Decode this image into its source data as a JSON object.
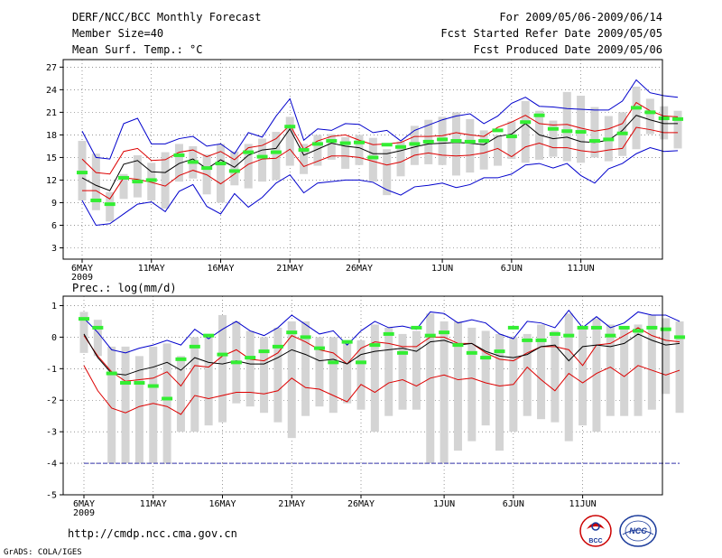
{
  "header": {
    "left_line1": "DERF/NCC/BCC Monthly Forecast",
    "left_line2": "Member Size=40",
    "left_line3": "Mean Surf. Temp.: °C",
    "right_line1": "For 2009/05/06-2009/06/14",
    "right_line2": "Fcst Started Refer Date 2009/05/05",
    "right_line3": "Fcst Produced Date 2009/05/06"
  },
  "footer": {
    "url": "http://cmdp.ncc.cma.gov.cn",
    "grads": "GrADS: COLA/IGES",
    "logo_bcc": "BCC",
    "logo_ncc": "NCC"
  },
  "colors": {
    "envelope": "#0000cc",
    "spread": "#dd0000",
    "mean": "#000000",
    "box": "#d4d4d4",
    "median": "#33ee33",
    "grid": "#555555",
    "baseline": "#3333aa"
  },
  "chart_data": [
    {
      "type": "line",
      "title": "Mean Surf. Temp.: °C",
      "x_tick_labels": [
        "6MAY",
        "11MAY",
        "16MAY",
        "21MAY",
        "26MAY",
        "1JUN",
        "6JUN",
        "11JUN"
      ],
      "x_tick_days": [
        0,
        5,
        10,
        15,
        20,
        26,
        31,
        36
      ],
      "first_label_year": "2009",
      "ylim": [
        1.5,
        28
      ],
      "yticks": [
        3,
        6,
        9,
        12,
        15,
        18,
        21,
        24,
        27
      ],
      "grid": "dotted",
      "series": [
        {
          "name": "max",
          "color": "blue",
          "values": [
            18.5,
            15,
            14.8,
            19.5,
            20.2,
            16.8,
            16.8,
            17.5,
            17.8,
            16.5,
            16.8,
            15.5,
            18.3,
            17.7,
            20.5,
            22.8,
            17.3,
            18.8,
            18.6,
            19.5,
            19.4,
            18.3,
            18.6,
            17.2,
            18.6,
            19.3,
            20,
            20.5,
            20.8,
            19.5,
            20.5,
            22.2,
            23,
            21.8,
            21.7,
            21.5,
            21.4,
            21.3,
            21.3,
            22.5,
            25.3,
            23.6,
            23.2,
            23
          ]
        },
        {
          "name": "p90",
          "color": "red",
          "values": [
            14.8,
            13,
            12.8,
            15.8,
            16.2,
            14.6,
            14.7,
            15.7,
            16,
            15.1,
            15.8,
            14.7,
            16.3,
            16.6,
            17.5,
            19.3,
            16.1,
            17.2,
            17.8,
            18,
            17.3,
            16.7,
            16.8,
            17,
            17.8,
            17.8,
            17.9,
            18.3,
            18,
            17.8,
            19,
            19.7,
            20.6,
            19.5,
            19.3,
            19.4,
            18.9,
            18.5,
            18.8,
            19.5,
            22.3,
            21.2,
            20.5,
            20.4
          ]
        },
        {
          "name": "mean",
          "color": "black",
          "values": [
            12.3,
            11.3,
            10.6,
            14.1,
            14.6,
            13.1,
            13,
            14.2,
            14.8,
            13.5,
            14.7,
            13.7,
            15.3,
            16,
            16.2,
            18.8,
            15.3,
            16.1,
            16.9,
            16.5,
            16.3,
            15.5,
            15.5,
            15.9,
            16.4,
            16.8,
            16.9,
            17,
            16.9,
            16.7,
            17.8,
            18.1,
            19.5,
            18,
            17.5,
            17.7,
            17.1,
            17,
            17.3,
            18.6,
            20.6,
            20,
            19.5,
            19.5
          ]
        },
        {
          "name": "p10",
          "color": "red",
          "values": [
            10.6,
            10.6,
            9.5,
            12.3,
            12.1,
            11.7,
            11.2,
            12.6,
            13.3,
            12.7,
            11.5,
            12.8,
            14.1,
            14.8,
            14.9,
            16.1,
            13.8,
            14.5,
            15.2,
            15.2,
            15,
            14.5,
            14,
            14.4,
            15.3,
            15.6,
            15.3,
            15.2,
            15.3,
            15.6,
            16.2,
            15.1,
            16.4,
            16.9,
            16.3,
            16.3,
            15.9,
            15.7,
            16,
            16.2,
            19,
            18.7,
            18.3,
            18.3
          ]
        },
        {
          "name": "min",
          "color": "blue",
          "values": [
            9.3,
            6,
            6.2,
            7.5,
            8.8,
            9.1,
            7.8,
            10.5,
            11.4,
            8.5,
            7.5,
            10.2,
            8.4,
            9.7,
            11.6,
            12.7,
            10.3,
            11.6,
            11.8,
            12,
            12,
            11.7,
            10.7,
            10,
            11.1,
            11.3,
            11.6,
            11,
            11.4,
            12.3,
            12.3,
            12.8,
            14,
            14.2,
            13.6,
            14.2,
            12.6,
            11.6,
            13.5,
            14.2,
            15.5,
            16.3,
            15.8,
            15.9
          ]
        }
      ],
      "boxes_low": [
        9.3,
        8,
        6.5,
        9.5,
        9.7,
        9.3,
        8.2,
        11.8,
        12.2,
        10.1,
        9,
        11.3,
        10.9,
        11.8,
        12,
        13.9,
        12.8,
        13.9,
        14.7,
        13.5,
        14,
        11.8,
        10,
        12.5,
        14,
        14.1,
        14,
        12.6,
        13,
        13.4,
        13.9,
        14.8,
        14.3,
        14.7,
        15.1,
        14.5,
        14.3,
        15,
        14.5,
        15.2,
        16.1,
        18.1,
        17.4,
        16.2
      ],
      "boxes_high": [
        17.2,
        15.5,
        10.4,
        12.8,
        15.3,
        14.3,
        15.7,
        16.8,
        16.5,
        15.4,
        16.8,
        15.8,
        16.8,
        17.5,
        18.4,
        20.4,
        16.8,
        18,
        18.1,
        17.7,
        18,
        17.6,
        16.1,
        17.1,
        19.2,
        20,
        20.4,
        21,
        20.1,
        18.6,
        18,
        19.8,
        22.5,
        21.2,
        19.9,
        23.7,
        23.2,
        21.7,
        20.5,
        21,
        24.4,
        22.8,
        21.8,
        21.2
      ],
      "median": [
        13,
        9.3,
        8.8,
        12.3,
        11.8,
        12,
        null,
        15.3,
        14.4,
        13.6,
        14.2,
        13.2,
        15.7,
        15.1,
        15.7,
        19.1,
        16,
        16.8,
        17.2,
        16.9,
        17,
        15,
        16.7,
        16.4,
        16.8,
        17.1,
        17.4,
        17.2,
        17.1,
        17.2,
        18.6,
        17.8,
        19.7,
        20.6,
        18.8,
        18.5,
        18.4,
        17.2,
        17.4,
        18.2,
        21.6,
        21,
        20.2,
        20.1
      ]
    },
    {
      "type": "line",
      "title": "Prec.: log(mm/d)",
      "x_tick_labels": [
        "6MAY",
        "11MAY",
        "16MAY",
        "21MAY",
        "26MAY",
        "1JUN",
        "6JUN",
        "11JUN"
      ],
      "x_tick_days": [
        0,
        5,
        10,
        15,
        20,
        26,
        31,
        36
      ],
      "first_label_year": "2009",
      "ylim": [
        -5,
        1.3
      ],
      "yticks": [
        -5,
        -4,
        -3,
        -2,
        -1,
        0,
        1
      ],
      "grid": "dotted",
      "baseline": -4,
      "series": [
        {
          "name": "max",
          "color": "blue",
          "values": [
            0.6,
            0.15,
            -0.4,
            -0.5,
            -0.35,
            -0.25,
            -0.1,
            -0.25,
            0.25,
            -0.05,
            0.25,
            0.5,
            0.2,
            0.05,
            0.3,
            0.7,
            0.4,
            0.1,
            0.2,
            -0.25,
            0.2,
            0.5,
            0.3,
            0.35,
            0.25,
            0.8,
            0.75,
            0.45,
            0.55,
            0.45,
            0.1,
            -0.05,
            0.5,
            0.45,
            0.3,
            0.85,
            0.3,
            0.65,
            0.3,
            0.45,
            0.8,
            0.7,
            0.7,
            0.5
          ]
        },
        {
          "name": "p90",
          "color": "red",
          "values": [
            0.05,
            -0.6,
            -1.1,
            -1.4,
            -1.35,
            -1.3,
            -1.1,
            -1.55,
            -0.9,
            -0.95,
            -0.6,
            -0.4,
            -0.7,
            -0.75,
            -0.5,
            0.05,
            -0.15,
            -0.4,
            -0.5,
            -0.85,
            -0.35,
            -0.15,
            -0.2,
            -0.3,
            -0.3,
            0,
            0,
            -0.2,
            -0.2,
            -0.5,
            -0.7,
            -0.75,
            -0.5,
            -0.3,
            -0.3,
            -0.4,
            -0.9,
            -0.25,
            -0.2,
            0.05,
            0.3,
            0.05,
            -0.1,
            -0.15
          ]
        },
        {
          "name": "mean",
          "color": "black",
          "values": [
            0.1,
            -0.65,
            -1.15,
            -1.2,
            -1.05,
            -0.95,
            -0.8,
            -1.05,
            -0.65,
            -0.8,
            -0.85,
            -0.75,
            -0.85,
            -0.85,
            -0.65,
            -0.4,
            -0.55,
            -0.75,
            -0.7,
            -0.85,
            -0.55,
            -0.45,
            -0.4,
            -0.35,
            -0.45,
            -0.15,
            -0.1,
            -0.25,
            -0.2,
            -0.45,
            -0.6,
            -0.65,
            -0.55,
            -0.3,
            -0.25,
            -0.75,
            -0.3,
            -0.25,
            -0.3,
            -0.2,
            0.1,
            -0.1,
            -0.25,
            -0.2
          ]
        },
        {
          "name": "p10",
          "color": "red",
          "values": [
            -0.9,
            -1.7,
            -2.25,
            -2.4,
            -2.2,
            -2.1,
            -2.2,
            -2.45,
            -1.85,
            -1.95,
            -1.85,
            -1.75,
            -1.75,
            -1.8,
            -1.7,
            -1.3,
            -1.6,
            -1.65,
            -1.85,
            -2.05,
            -1.5,
            -1.75,
            -1.45,
            -1.35,
            -1.55,
            -1.3,
            -1.2,
            -1.35,
            -1.3,
            -1.45,
            -1.55,
            -1.5,
            -0.95,
            -1.35,
            -1.7,
            -1.15,
            -1.45,
            -1.15,
            -0.95,
            -1.25,
            -0.9,
            -1.05,
            -1.2,
            -1.05
          ]
        },
        {
          "name": "min",
          "color": "baseline",
          "values": [
            -4,
            -4,
            -4,
            -4,
            -4,
            -4,
            -4,
            -4,
            -4,
            -4,
            -4,
            -4,
            -4,
            -4,
            -4,
            -4,
            -4,
            -4,
            -4,
            -4,
            -4,
            -4,
            -4,
            -4,
            -4,
            -4,
            -4,
            -4,
            -4,
            -4,
            -4,
            -4,
            -4,
            -4,
            -4,
            -4,
            -4,
            -4,
            -4,
            -4,
            -4,
            -4,
            -4,
            -4
          ]
        }
      ],
      "boxes_low": [
        -0.5,
        -0.6,
        -4,
        -4,
        -4,
        -4,
        -4,
        -3,
        -3,
        -2.8,
        -2.7,
        -2.1,
        -2.2,
        -2.4,
        -2.7,
        -3.2,
        -2.5,
        -2.2,
        -2.4,
        -2.1,
        -2.3,
        -3,
        -2.5,
        -2.3,
        -2.3,
        -4,
        -4,
        -3.6,
        -3.3,
        -2.8,
        -3.6,
        -3,
        -2.5,
        -2.6,
        -2.7,
        -3.3,
        -2.8,
        -3,
        -2.5,
        -2.5,
        -2.5,
        -2.3,
        -1.8,
        -2.4
      ],
      "boxes_high": [
        0.8,
        0.55,
        -0.3,
        -0.3,
        -0.6,
        -0.3,
        -0.2,
        -0.6,
        0,
        0.1,
        0.7,
        0.5,
        0.2,
        0,
        0.3,
        0.5,
        0.5,
        0,
        0,
        -0.2,
        -0.1,
        0.4,
        0.3,
        0.1,
        0.2,
        0.75,
        0.5,
        0.5,
        0.3,
        0.2,
        0.1,
        0,
        0.1,
        0.4,
        0.2,
        0.75,
        0.3,
        0.6,
        0.4,
        0.35,
        0.4,
        0.7,
        0.6,
        0.5
      ],
      "median": [
        0.58,
        0.3,
        -1.15,
        -1.45,
        -1.45,
        -1.55,
        -1.95,
        -0.7,
        -0.3,
        0.05,
        -0.55,
        -0.8,
        -0.65,
        -0.45,
        -0.3,
        0.15,
        0,
        -0.35,
        -0.8,
        -0.15,
        -0.8,
        -0.25,
        0.1,
        -0.5,
        0.3,
        0.05,
        0.15,
        -0.25,
        -0.5,
        -0.65,
        -0.45,
        0.3,
        -0.1,
        -0.1,
        0.1,
        0.05,
        0.3,
        0.3,
        0.05,
        0.3,
        0.2,
        0.3,
        0.25,
        0
      ]
    }
  ]
}
